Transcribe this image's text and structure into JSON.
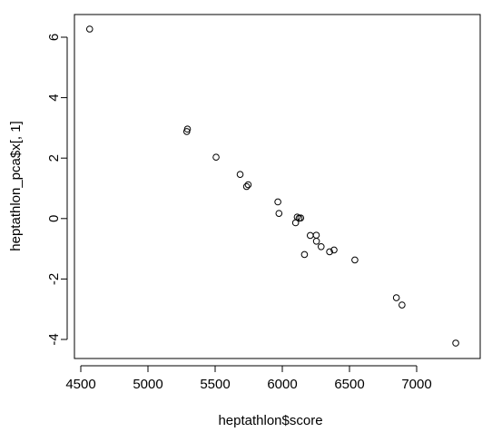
{
  "chart_data": {
    "type": "scatter",
    "title": "",
    "xlabel": "heptathlon$score",
    "ylabel": "heptathlon_pca$x[, 1]",
    "xlim": [
      4500,
      7100
    ],
    "ylim": [
      -4.2,
      6.5
    ],
    "xticks": [
      4500,
      5000,
      5500,
      6000,
      6500,
      7000
    ],
    "xtick_labels": [
      "4500",
      "5000",
      "5500",
      "6000",
      "6500",
      "7000"
    ],
    "yticks": [
      -4,
      -2,
      0,
      2,
      4,
      6
    ],
    "ytick_labels": [
      "-4",
      "-2",
      "0",
      "2",
      "4",
      "6"
    ],
    "grid": false,
    "marker": "open-circle",
    "series": [
      {
        "x": [
          4566,
          5289,
          5294,
          5507,
          5686,
          5734,
          5746,
          5967,
          5975,
          6099,
          6111,
          6125,
          6137,
          6165,
          6208,
          6253,
          6254,
          6289,
          6352,
          6385,
          6540,
          6849,
          6891,
          7291
        ],
        "y": [
          6.27,
          2.88,
          2.96,
          2.03,
          1.46,
          1.06,
          1.12,
          0.55,
          0.17,
          -0.14,
          0.05,
          0.01,
          0.02,
          -1.19,
          -0.56,
          -0.55,
          -0.75,
          -0.93,
          -1.1,
          -1.04,
          -1.37,
          -2.62,
          -2.86,
          -4.12
        ]
      }
    ]
  }
}
